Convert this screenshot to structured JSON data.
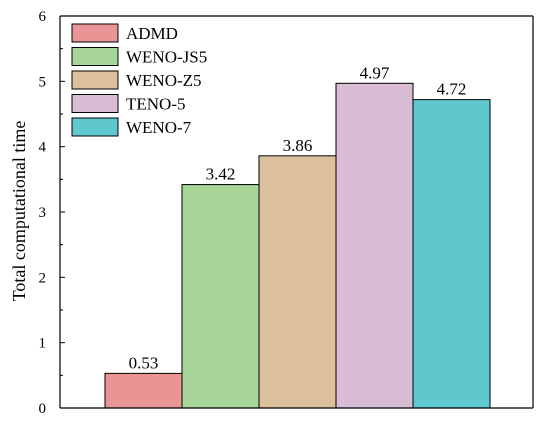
{
  "chart_data": {
    "type": "bar",
    "title": "",
    "xlabel": "",
    "ylabel": "Total computational time",
    "ylim": [
      0,
      6
    ],
    "yticks": [
      0,
      1,
      2,
      3,
      4,
      5,
      6
    ],
    "grid": false,
    "legend_position": "top-left",
    "series": [
      {
        "name": "ADMD",
        "value": 0.53,
        "label": "0.53",
        "color": "#e99596"
      },
      {
        "name": "WENO-JS5",
        "value": 3.42,
        "label": "3.42",
        "color": "#a8d59a"
      },
      {
        "name": "WENO-Z5",
        "value": 3.86,
        "label": "3.86",
        "color": "#dcbf9c"
      },
      {
        "name": "TENO-5",
        "value": 4.97,
        "label": "4.97",
        "color": "#d7bcd3"
      },
      {
        "name": "WENO-7",
        "value": 4.72,
        "label": "4.72",
        "color": "#5ec8ce"
      }
    ]
  }
}
